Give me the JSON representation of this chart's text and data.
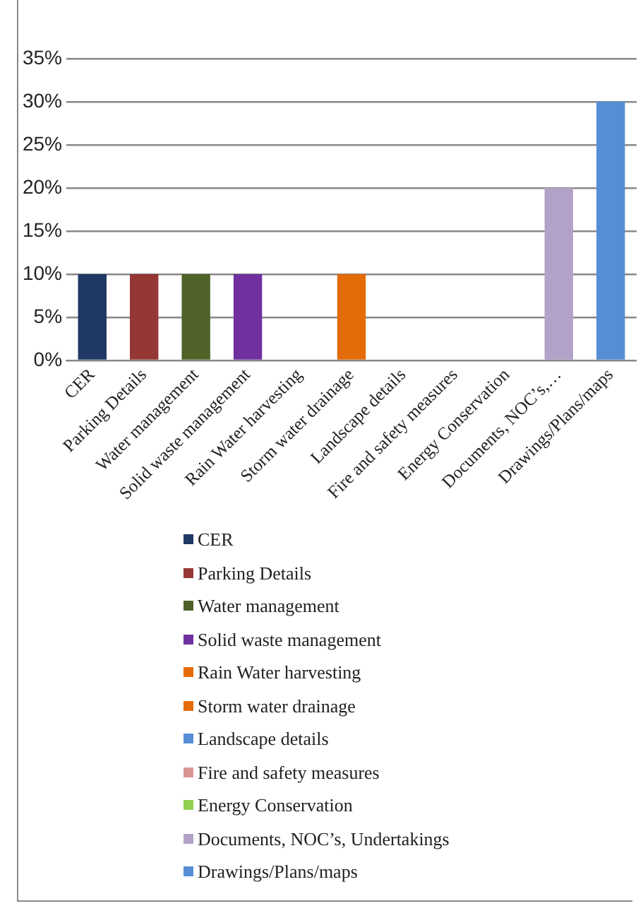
{
  "chart_data": {
    "type": "bar",
    "categories": [
      "CER",
      "Parking Details",
      "Water management",
      "Solid waste management",
      "Rain Water harvesting",
      "Storm water drainage",
      "Landscape details",
      "Fire and safety measures",
      "Energy Conservation",
      "Documents, NOC’s,…",
      "Drawings/Plans/maps"
    ],
    "series": [
      {
        "name": "CER",
        "color": "#1f3864",
        "values": [
          10,
          null,
          null,
          null,
          null,
          null,
          null,
          null,
          null,
          null,
          null
        ]
      },
      {
        "name": "Parking Details",
        "color": "#953735",
        "values": [
          null,
          10,
          null,
          null,
          null,
          null,
          null,
          null,
          null,
          null,
          null
        ]
      },
      {
        "name": "Water management",
        "color": "#4f6228",
        "values": [
          null,
          null,
          10,
          null,
          null,
          null,
          null,
          null,
          null,
          null,
          null
        ]
      },
      {
        "name": "Solid waste management",
        "color": "#7030a0",
        "values": [
          null,
          null,
          null,
          10,
          null,
          null,
          null,
          null,
          null,
          null,
          null
        ]
      },
      {
        "name": "Rain Water harvesting",
        "color": "#e36c09",
        "values": [
          null,
          null,
          null,
          null,
          0,
          null,
          null,
          null,
          null,
          null,
          null
        ]
      },
      {
        "name": "Storm water drainage",
        "color": "#e36c09",
        "values": [
          null,
          null,
          null,
          null,
          null,
          10,
          null,
          null,
          null,
          null,
          null
        ]
      },
      {
        "name": "Landscape details",
        "color": "#558ed5",
        "values": [
          null,
          null,
          null,
          null,
          null,
          null,
          0,
          null,
          null,
          null,
          null
        ]
      },
      {
        "name": "Fire and safety measures",
        "color": "#d99694",
        "values": [
          null,
          null,
          null,
          null,
          null,
          null,
          null,
          0,
          null,
          null,
          null
        ]
      },
      {
        "name": "Energy Conservation",
        "color": "#92d050",
        "values": [
          null,
          null,
          null,
          null,
          null,
          null,
          null,
          null,
          0,
          null,
          null
        ]
      },
      {
        "name": "Documents, NOC’s, Undertakings",
        "color": "#b3a2c7",
        "values": [
          null,
          null,
          null,
          null,
          null,
          null,
          null,
          null,
          null,
          20,
          null
        ]
      },
      {
        "name": "Drawings/Plans/maps",
        "color": "#558ed5",
        "values": [
          null,
          null,
          null,
          null,
          null,
          null,
          null,
          null,
          null,
          null,
          30
        ]
      }
    ],
    "ylim": [
      0,
      35
    ],
    "yticks": [
      {
        "value": 0,
        "label": "0%"
      },
      {
        "value": 5,
        "label": "5%"
      },
      {
        "value": 10,
        "label": "10%"
      },
      {
        "value": 15,
        "label": "15%"
      },
      {
        "value": 20,
        "label": "20%"
      },
      {
        "value": 25,
        "label": "25%"
      },
      {
        "value": 30,
        "label": "30%"
      },
      {
        "value": 35,
        "label": "35%"
      }
    ],
    "grid": "y",
    "legend": "bottom"
  }
}
